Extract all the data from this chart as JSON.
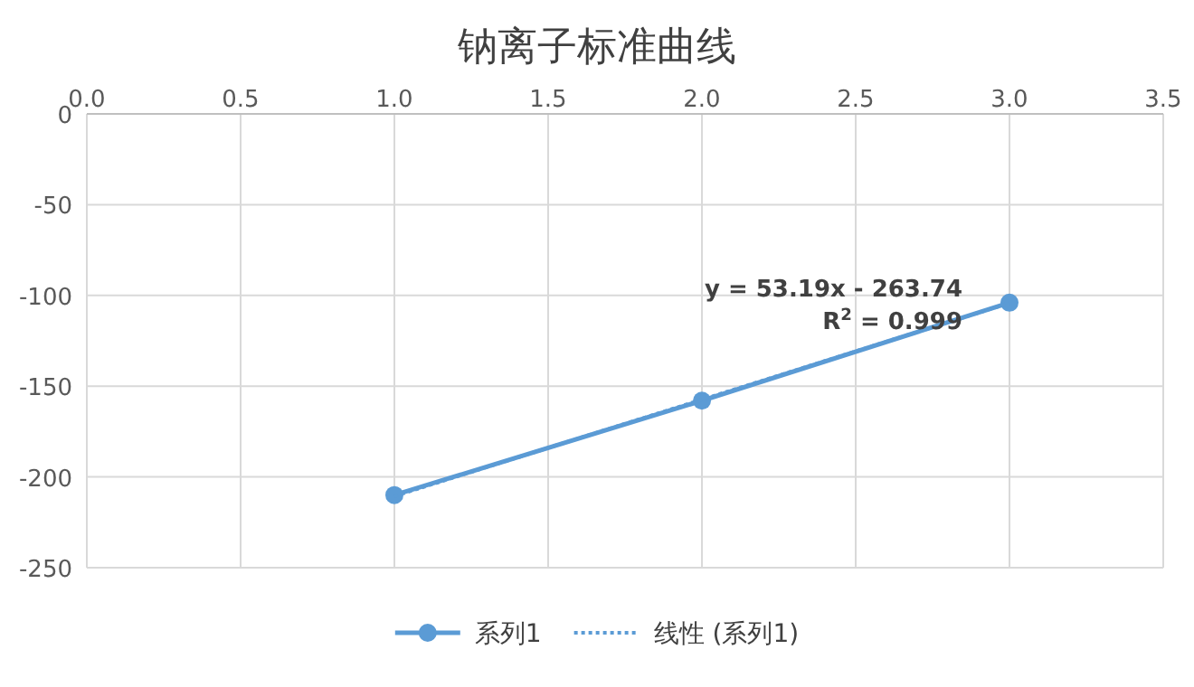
{
  "chart_data": {
    "type": "line",
    "title": "钠离子标准曲线",
    "x": [
      1,
      2,
      3
    ],
    "xlim": [
      0,
      3.5
    ],
    "xticks": [
      {
        "value": 0,
        "label": "0.0"
      },
      {
        "value": 0.5,
        "label": "0.5"
      },
      {
        "value": 1,
        "label": "1.0"
      },
      {
        "value": 1.5,
        "label": "1.5"
      },
      {
        "value": 2,
        "label": "2.0"
      },
      {
        "value": 2.5,
        "label": "2.5"
      },
      {
        "value": 3,
        "label": "3.0"
      },
      {
        "value": 3.5,
        "label": "3.5"
      }
    ],
    "ylim": [
      -250,
      0
    ],
    "yticks": [
      0,
      -50,
      -100,
      -150,
      -200,
      -250
    ],
    "grid": true,
    "legend": "bottom",
    "marker": "circle",
    "series": [
      {
        "name": "系列1",
        "color": "#5b9bd5",
        "values": [
          -210,
          -158,
          -104
        ],
        "line_style": "solid"
      },
      {
        "name": "线性 (系列1)",
        "type": "line",
        "x": [
          1,
          3
        ],
        "values": [
          -210.6,
          -104.2
        ],
        "color": "#5b9bd5",
        "marker": "none",
        "line_style": "dotted"
      }
    ],
    "annotations": [
      "y = 53.19x - 263.74",
      "R$^{2}$ = 0.999"
    ]
  }
}
